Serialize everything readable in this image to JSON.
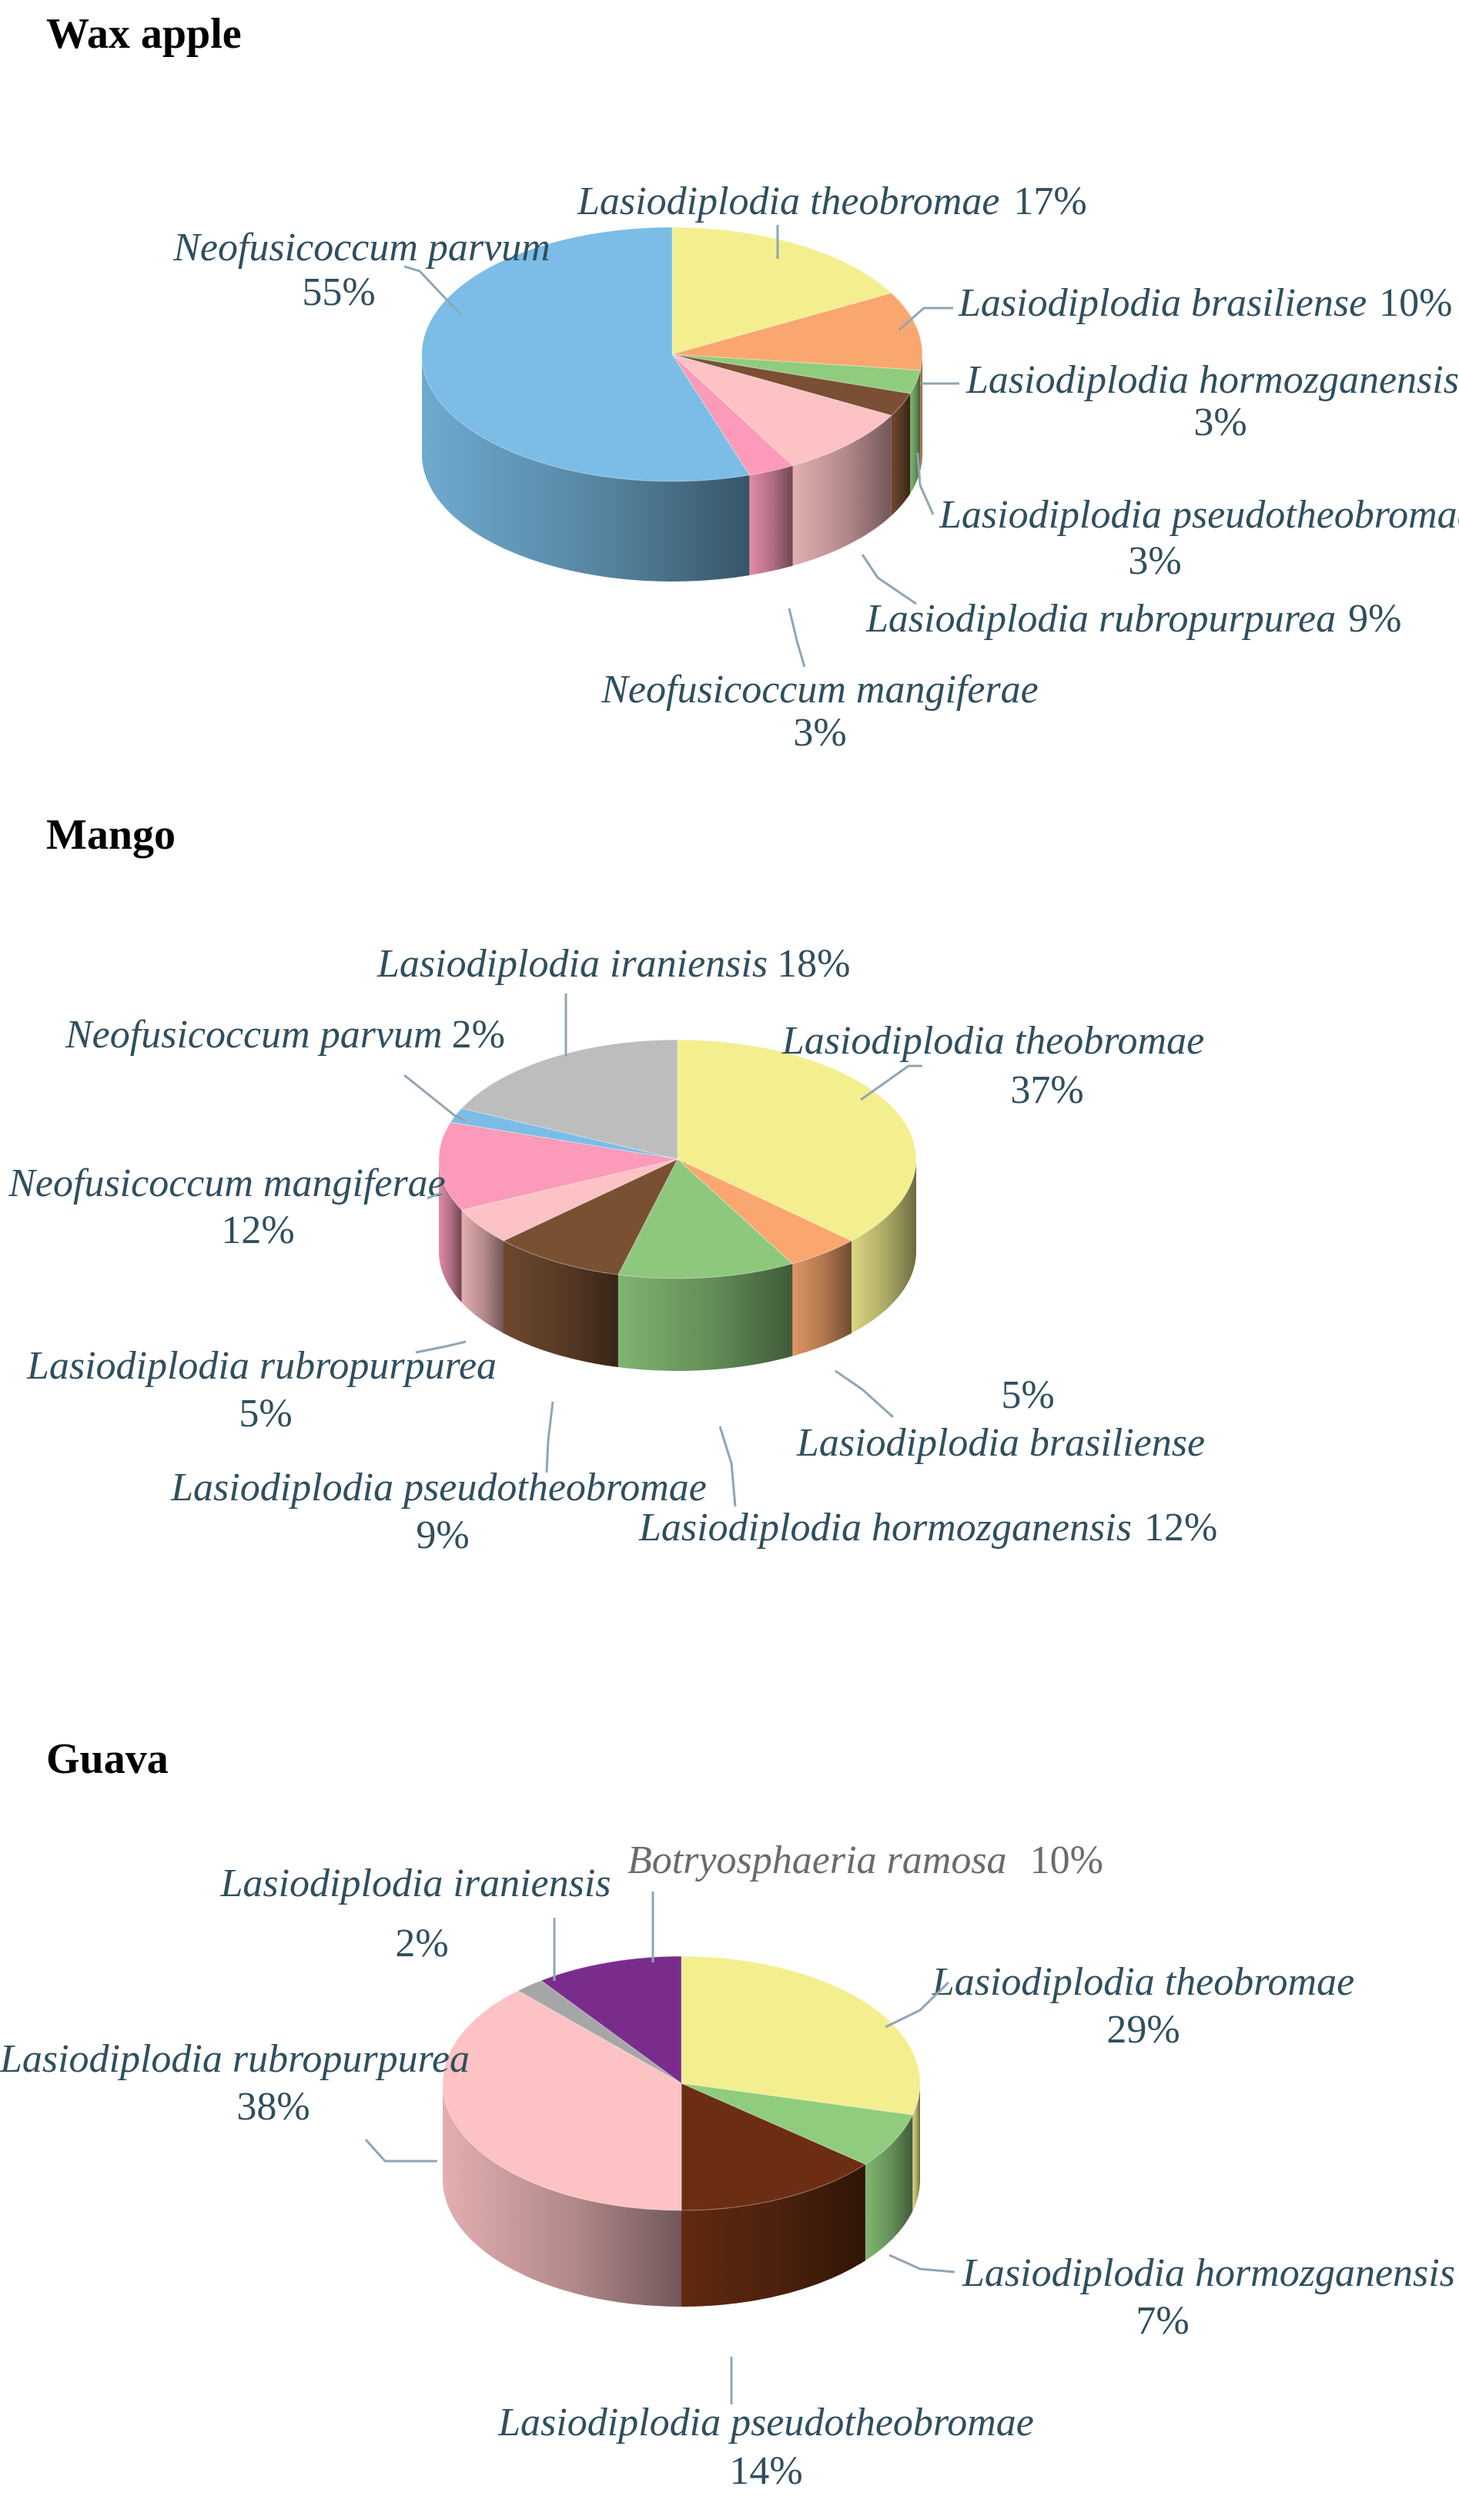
{
  "chart_data": [
    {
      "type": "pie",
      "title": "Wax apple",
      "slices": [
        {
          "label": "Lasiodiplodia theobromae",
          "value": 17,
          "value_label": "17%",
          "color": "#f3ef8f"
        },
        {
          "label": "Lasiodiplodia brasiliense",
          "value": 10,
          "value_label": "10%",
          "color": "#f9a76f"
        },
        {
          "label": "Lasiodiplodia hormozganensis",
          "value": 3,
          "value_label": "3%",
          "color": "#8fcc7e"
        },
        {
          "label": "Lasiodiplodia pseudotheobromae",
          "value": 3,
          "value_label": "3%",
          "color": "#7a4f33"
        },
        {
          "label": "Lasiodiplodia rubropurpurea",
          "value": 9,
          "value_label": "9%",
          "color": "#fdc2c4"
        },
        {
          "label": "Neofusicoccum mangiferae",
          "value": 3,
          "value_label": "3%",
          "color": "#fb9ab9"
        },
        {
          "label": "Neofusicoccum parvum",
          "value": 55,
          "value_label": "55%",
          "color": "#7bbde6"
        }
      ]
    },
    {
      "type": "pie",
      "title": "Mango",
      "slices": [
        {
          "label": "Lasiodiplodia theobromae",
          "value": 37,
          "value_label": "37%",
          "color": "#f3ef8f"
        },
        {
          "label": "Lasiodiplodia brasiliense",
          "value": 5,
          "value_label": "5%",
          "color": "#f9a76f"
        },
        {
          "label": "Lasiodiplodia hormozganensis",
          "value": 12,
          "value_label": "12%",
          "color": "#8dc87c"
        },
        {
          "label": "Lasiodiplodia pseudotheobromae",
          "value": 9,
          "value_label": "9%",
          "color": "#7a5033"
        },
        {
          "label": "Lasiodiplodia rubropurpurea",
          "value": 5,
          "value_label": "5%",
          "color": "#fdc2c4"
        },
        {
          "label": "Neofusicoccum mangiferae",
          "value": 12,
          "value_label": "12%",
          "color": "#fb9ab9"
        },
        {
          "label": "Neofusicoccum parvum",
          "value": 2,
          "value_label": "2%",
          "color": "#7bbde6"
        },
        {
          "label": "Lasiodiplodia iraniensis",
          "value": 18,
          "value_label": "18%",
          "color": "#bdbdbd"
        }
      ]
    },
    {
      "type": "pie",
      "title": "Guava",
      "slices": [
        {
          "label": "Lasiodiplodia theobromae",
          "value": 29,
          "value_label": "29%",
          "color": "#f3ef8f"
        },
        {
          "label": "Lasiodiplodia hormozganensis",
          "value": 7,
          "value_label": "7%",
          "color": "#8fcc7e"
        },
        {
          "label": "Lasiodiplodia pseudotheobromae",
          "value": 14,
          "value_label": "14%",
          "color": "#6b2e12"
        },
        {
          "label": "Lasiodiplodia rubropurpurea",
          "value": 38,
          "value_label": "38%",
          "color": "#fdc2c4"
        },
        {
          "label": "Lasiodiplodia iraniensis",
          "value": 2,
          "value_label": "2%",
          "color": "#a6a6a6"
        },
        {
          "label": "Botryosphaeria ramosa",
          "value": 10,
          "value_label": "10%",
          "color": "#7a2c8c"
        }
      ]
    }
  ]
}
